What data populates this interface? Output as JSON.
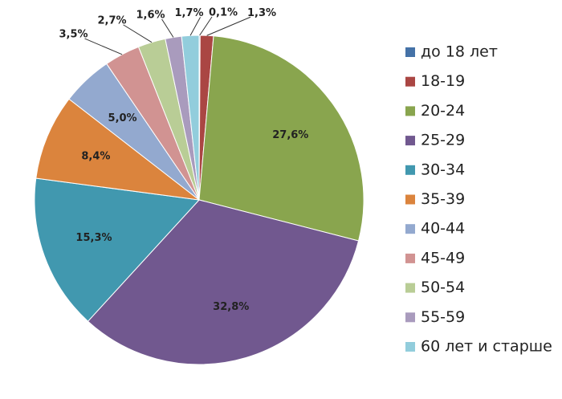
{
  "chart_data": {
    "type": "pie",
    "categories": [
      "до 18 лет",
      "18-19",
      "20-24",
      "25-29",
      "30-34",
      "35-39",
      "40-44",
      "45-49",
      "50-54",
      "55-59",
      "60 лет и старше"
    ],
    "values": [
      0.1,
      1.3,
      27.6,
      32.8,
      15.3,
      8.4,
      5.0,
      3.5,
      2.7,
      1.6,
      1.7
    ],
    "value_labels": [
      "0,1%",
      "1,3%",
      "27,6%",
      "32,8%",
      "15,3%",
      "8,4%",
      "5,0%",
      "3,5%",
      "2,7%",
      "1,6%",
      "1,7%"
    ],
    "colors": [
      "#4572a7",
      "#aa4643",
      "#89a54e",
      "#71588f",
      "#4198af",
      "#db843d",
      "#93a9cf",
      "#d19392",
      "#b9cd96",
      "#a99bbd",
      "#92cddc"
    ],
    "legend": "right"
  }
}
